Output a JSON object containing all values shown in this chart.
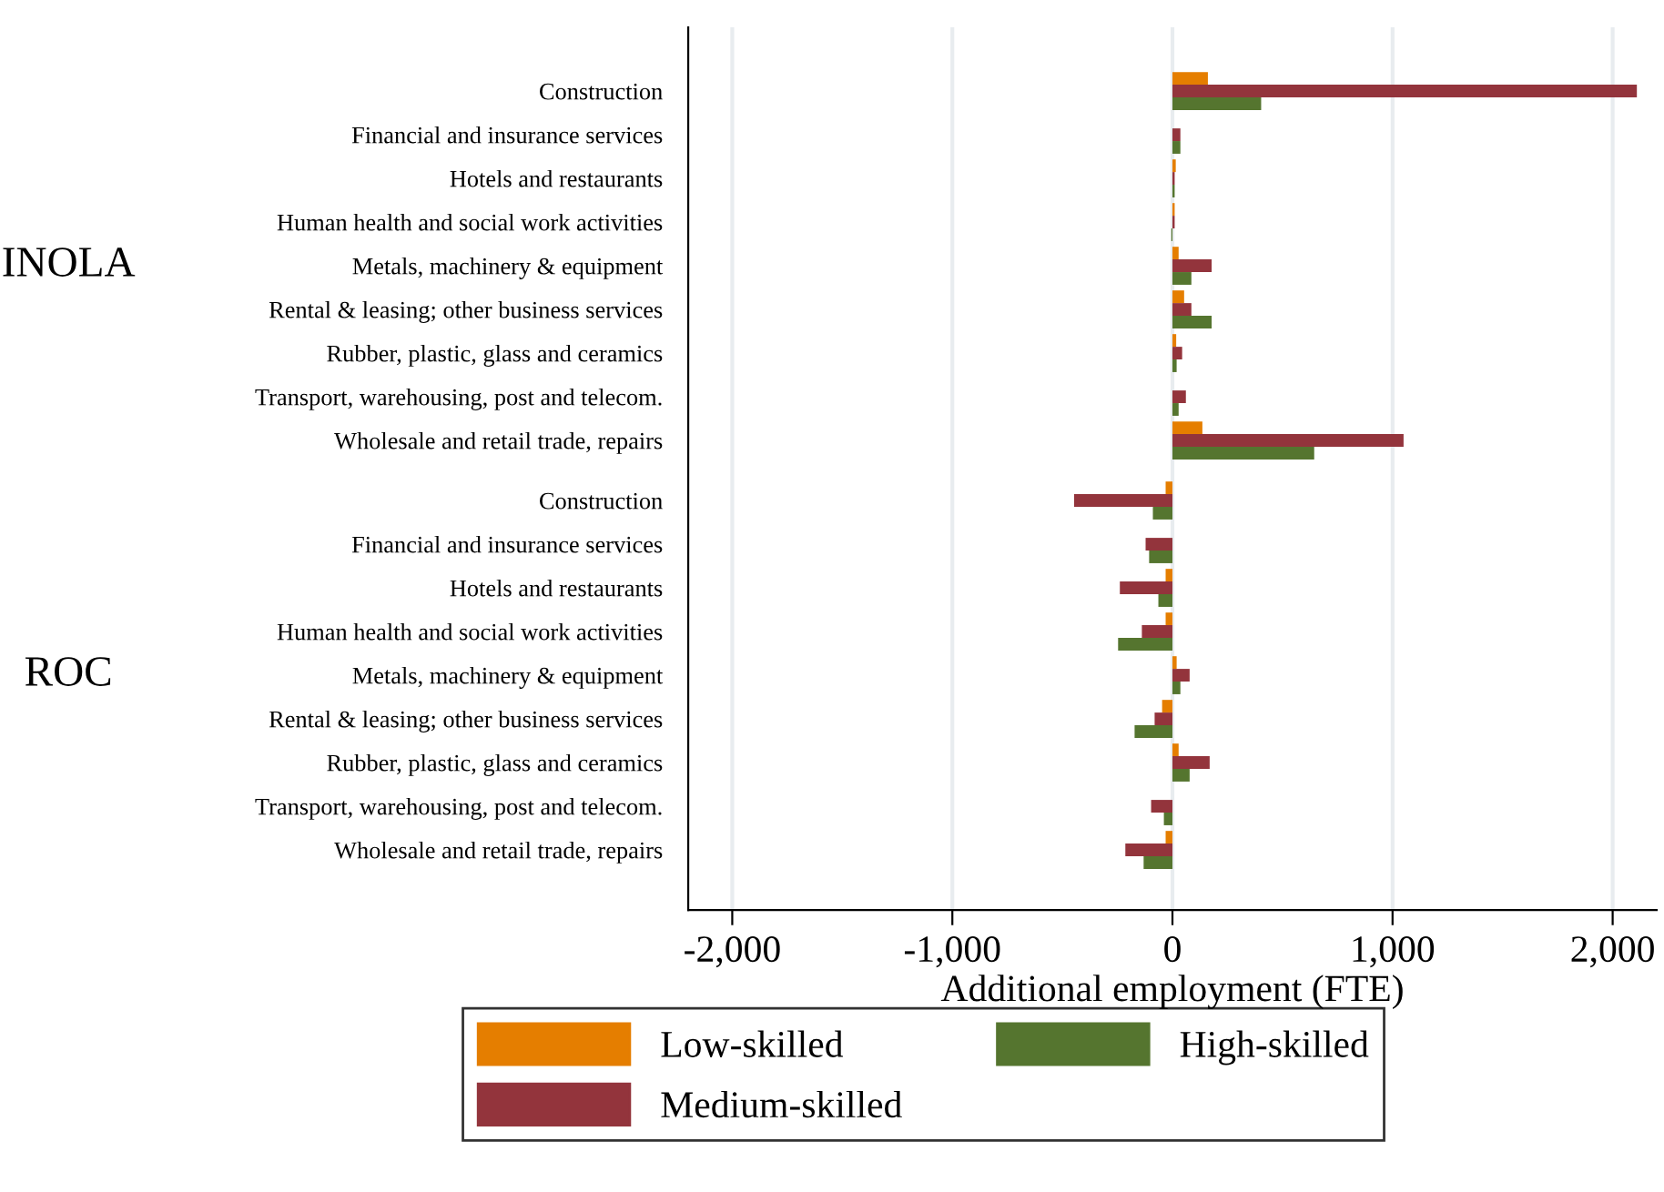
{
  "chart_data": {
    "type": "bar",
    "orientation": "horizontal",
    "categories": [
      "Construction",
      "Financial and insurance services",
      "Hotels and restaurants",
      "Human health and social work activities",
      "Metals, machinery & equipment",
      "Rental & leasing; other business services",
      "Rubber, plastic, glass and ceramics",
      "Transport, warehousing, post and telecom.",
      "Wholesale and retail trade, repairs",
      "Construction",
      "Financial and insurance services",
      "Hotels and restaurants",
      "Human health and social work activities",
      "Metals, machinery & equipment",
      "Rental & leasing; other business services",
      "Rubber, plastic, glass and ceramics",
      "Transport, warehousing, post and telecom.",
      "Wholesale and retail trade, repairs"
    ],
    "series": [
      {
        "name": "Low-skilled",
        "color": "#e57e00",
        "values": [
          161,
          0,
          15,
          10,
          28,
          53,
          17,
          0,
          136,
          -31,
          0,
          -31,
          -31,
          19,
          -47,
          28,
          0,
          -31
        ]
      },
      {
        "name": "Medium-skilled",
        "color": "#93343c",
        "values": [
          2110,
          36,
          10,
          10,
          178,
          86,
          44,
          61,
          1050,
          -447,
          -122,
          -239,
          -139,
          78,
          -81,
          169,
          -97,
          -214
        ]
      },
      {
        "name": "High-skilled",
        "color": "#55752f",
        "values": [
          403,
          36,
          10,
          -5,
          86,
          178,
          19,
          28,
          644,
          -89,
          -106,
          -64,
          -247,
          36,
          -172,
          78,
          -39,
          -131
        ]
      }
    ],
    "annotations": [
      "INOLA",
      "ROC"
    ],
    "xlabel": "Additional employment (FTE)",
    "xlim": [
      -2200,
      2200
    ],
    "xticks": [
      {
        "value": -2000,
        "label": "-2,000"
      },
      {
        "value": -1000,
        "label": "-1,000"
      },
      0,
      {
        "value": 1000,
        "label": "1,000"
      },
      {
        "value": 2000,
        "label": "2,000"
      }
    ],
    "grid": "x",
    "legend": "bottom"
  }
}
